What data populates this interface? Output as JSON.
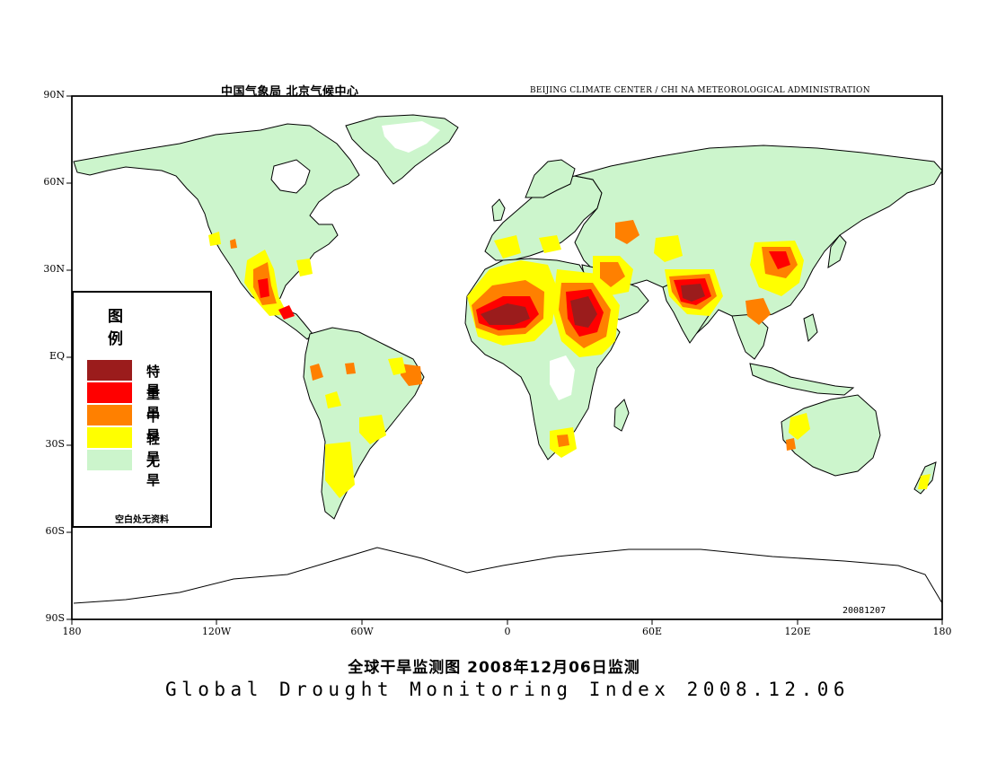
{
  "header": {
    "cn": "中国气象局    北京气候中心",
    "en": "BEIJING CLIMATE CENTER / CHI NA METEOROLOGICAL ADMINISTRATION"
  },
  "axes": {
    "lat_labels": [
      "90N",
      "60N",
      "30N",
      "EQ",
      "30S",
      "60S",
      "90S"
    ],
    "lon_labels": [
      "180",
      "120W",
      "60W",
      "0",
      "60E",
      "120E",
      "180"
    ]
  },
  "legend": {
    "title": "图 例",
    "items": [
      {
        "label": "特 旱",
        "color": "#9b1c1c"
      },
      {
        "label": "重 旱",
        "color": "#ff0000"
      },
      {
        "label": "中 旱",
        "color": "#ff8000"
      },
      {
        "label": "轻 旱",
        "color": "#ffff00"
      },
      {
        "label": "无 旱",
        "color": "#ccf5cc"
      }
    ],
    "note": "空白处无资料"
  },
  "date_code": "20081207",
  "title_cn": "全球干旱监测图     2008年12月06日监测",
  "title_en": "Global Drought Monitoring Index  2008.12.06",
  "colors": {
    "no_drought": "#ccf5cc",
    "light": "#ffff00",
    "moderate": "#ff8000",
    "severe": "#ff0000",
    "extreme": "#9b1c1c",
    "coast": "#000000"
  }
}
